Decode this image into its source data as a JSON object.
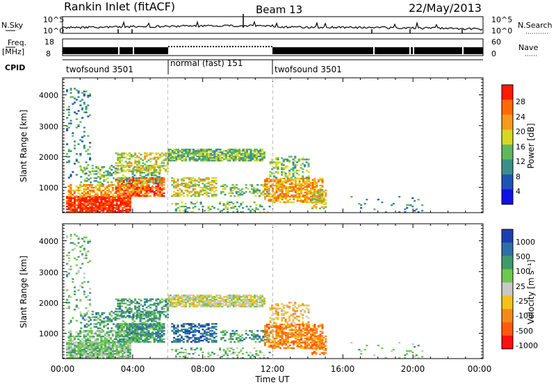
{
  "header": {
    "station": "Rankin Inlet (fitACF)",
    "beam": "Beam 13",
    "date": "22/May/2013"
  },
  "chart_data": [
    {
      "id": "noise",
      "type": "line",
      "left_label": "N.Sky",
      "right_label": "N.Search",
      "left_ticks": [
        "10^5",
        "10^0"
      ],
      "right_ticks": [
        "10^5",
        "10^0"
      ]
    },
    {
      "id": "frequency",
      "type": "line",
      "left_label": "Freq.",
      "left_unit": "[MHz]",
      "left_ticks": [
        "18",
        "8"
      ],
      "right_label": "Nave",
      "right_ticks": [
        "60",
        "0"
      ]
    },
    {
      "id": "cpid",
      "type": "table",
      "label": "CPID",
      "segments": [
        {
          "name": "twofsound 3501",
          "start_hour": 0,
          "end_hour": 6
        },
        {
          "name": "normal (fast) 151",
          "start_hour": 6,
          "end_hour": 12
        },
        {
          "name": "twofsound 3501",
          "start_hour": 12,
          "end_hour": 24
        }
      ]
    },
    {
      "id": "power",
      "type": "heatmap",
      "ylabel": "Slant Range [km]",
      "yticks": [
        1000,
        2000,
        3000,
        4000
      ],
      "ylim": [
        180,
        4550
      ],
      "xlim": [
        0,
        24
      ],
      "colorbar_label": "Power [dB]",
      "colorbar_ticks": [
        "4",
        "8",
        "12",
        "16",
        "20",
        "24",
        "28"
      ],
      "colors": [
        "#1010e8",
        "#1d55b5",
        "#3b8f8a",
        "#5fb85c",
        "#d8d820",
        "#f59a1c",
        "#ff6a00",
        "#ff1a00"
      ]
    },
    {
      "id": "velocity",
      "type": "heatmap",
      "ylabel": "Slant Range [km]",
      "yticks": [
        1000,
        2000,
        3000,
        4000
      ],
      "ylim": [
        180,
        4550
      ],
      "xlim": [
        0,
        24
      ],
      "xlabel": "Time UT",
      "xticks": [
        "00:00",
        "04:00",
        "08:00",
        "12:00",
        "16:00",
        "20:00",
        "00:00"
      ],
      "colorbar_label": "Velocity [m s⁻¹]",
      "colorbar_ticks": [
        "1000",
        "500",
        "100",
        "25",
        "-25",
        "-100",
        "-500",
        "-1000"
      ],
      "colors": [
        "#1d3fb0",
        "#2f6fa8",
        "#3f9a6a",
        "#6cc84e",
        "#c8c8c8",
        "#f5c21c",
        "#f58a1c",
        "#ff5a10",
        "#ff1010"
      ]
    }
  ]
}
